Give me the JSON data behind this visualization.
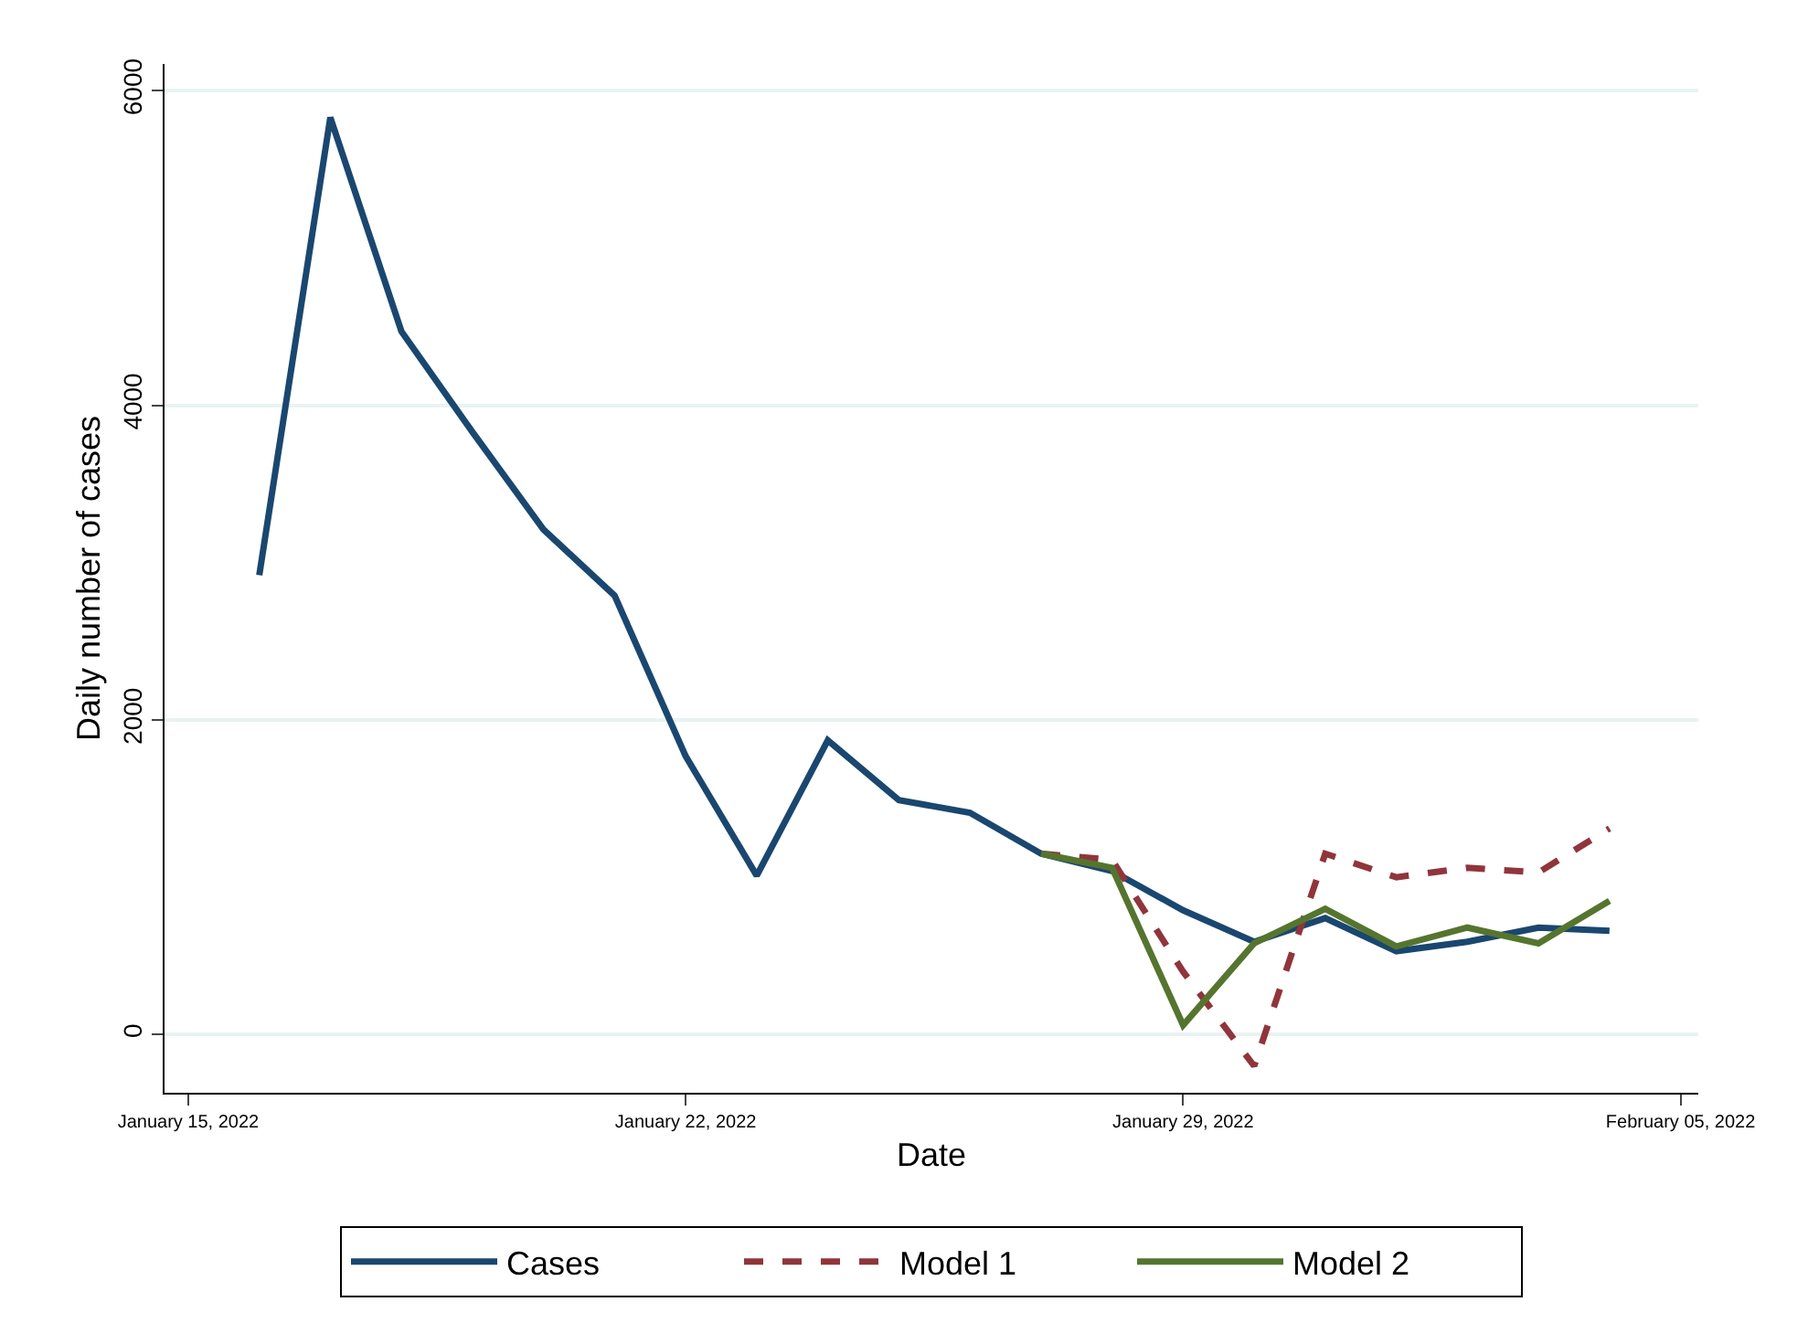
{
  "chart_data": {
    "type": "line",
    "xlabel": "Date",
    "ylabel": "Daily number of cases",
    "x": [
      "2022-01-16",
      "2022-01-17",
      "2022-01-18",
      "2022-01-19",
      "2022-01-20",
      "2022-01-21",
      "2022-01-22",
      "2022-01-23",
      "2022-01-24",
      "2022-01-25",
      "2022-01-26",
      "2022-01-27",
      "2022-01-28",
      "2022-01-29",
      "2022-01-30",
      "2022-01-31",
      "2022-02-01",
      "2022-02-02",
      "2022-02-03",
      "2022-02-04"
    ],
    "series": [
      {
        "name": "Cases",
        "color": "#1a476f",
        "line_style": "solid",
        "values": [
          2920,
          5830,
          4470,
          3830,
          3210,
          2790,
          1770,
          1010,
          1870,
          1490,
          1410,
          1150,
          1040,
          790,
          590,
          740,
          530,
          590,
          680,
          660
        ]
      },
      {
        "name": "Model 1",
        "color": "#90353b",
        "line_style": "dashed",
        "values": [
          null,
          null,
          null,
          null,
          null,
          null,
          null,
          null,
          null,
          null,
          null,
          1150,
          1110,
          400,
          -200,
          1150,
          1000,
          1060,
          1030,
          1310
        ]
      },
      {
        "name": "Model 2",
        "color": "#55752f",
        "line_style": "solid",
        "values": [
          null,
          null,
          null,
          null,
          null,
          null,
          null,
          null,
          null,
          null,
          null,
          1150,
          1060,
          60,
          580,
          800,
          560,
          680,
          580,
          850
        ]
      }
    ],
    "xlim": [
      "2022-01-14T16:00",
      "2022-02-05T06:00"
    ],
    "xticks": [
      {
        "value": "2022-01-15",
        "label": "January 15, 2022"
      },
      {
        "value": "2022-01-22",
        "label": "January 22, 2022"
      },
      {
        "value": "2022-01-29",
        "label": "January 29, 2022"
      },
      {
        "value": "2022-02-05",
        "label": "February 05, 2022"
      }
    ],
    "ylim": [
      -370,
      6170
    ],
    "yticks": [
      0,
      2000,
      4000,
      6000
    ],
    "grid": "y",
    "legend": "bottom",
    "marker": "none"
  }
}
